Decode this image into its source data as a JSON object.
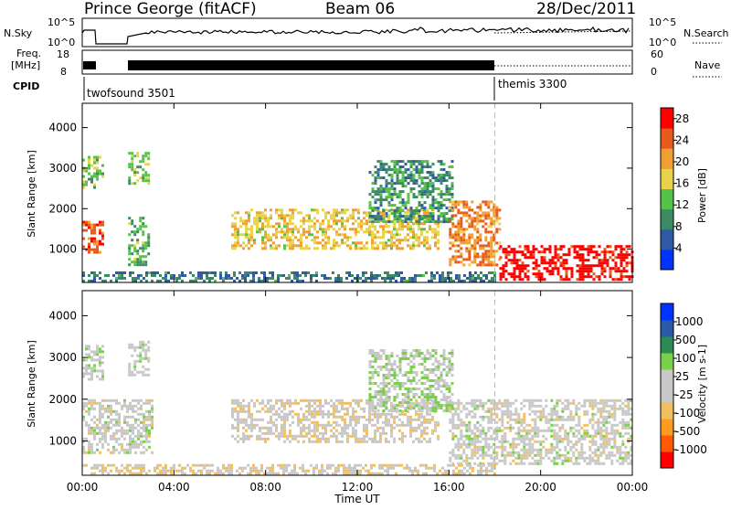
{
  "header": {
    "radar": "Prince George (fitACF)",
    "beam": "Beam 06",
    "date": "28/Dec/2011"
  },
  "panels": {
    "nsky": {
      "label": "N.Sky",
      "ticks": [
        "10^5",
        "10^0"
      ],
      "right_label": "N.Search",
      "right_ticks": [
        "10^5",
        "10^0"
      ]
    },
    "freq": {
      "label_line1": "Freq.",
      "label_line2": "[MHz]",
      "ticks": [
        "18",
        "8"
      ],
      "right_label": "Nave",
      "right_ticks": [
        "60",
        "0"
      ]
    },
    "cpid": {
      "label": "CPID",
      "segments": [
        "twofsound 3501",
        "themis 3300"
      ]
    }
  },
  "chart_data": [
    {
      "type": "heatmap",
      "title": "",
      "xlabel": "Time UT",
      "ylabel": "Slant Range [km]",
      "x_ticks": [
        "00:00",
        "04:00",
        "08:00",
        "12:00",
        "16:00",
        "20:00",
        "00:00"
      ],
      "y_ticks": [
        "4000",
        "3000",
        "2000",
        "1000"
      ],
      "xlim": [
        0,
        24
      ],
      "ylim": [
        180,
        4600
      ],
      "colorbar": {
        "label": "Power [dB]",
        "ticks": [
          "28",
          "24",
          "20",
          "16",
          "12",
          "8",
          "4"
        ],
        "range": [
          0,
          30
        ],
        "colors": [
          "#0033ff",
          "#2f5aa8",
          "#3c8a63",
          "#55c24a",
          "#e8d34a",
          "#f0a030",
          "#e85a1c",
          "#ff0000"
        ]
      },
      "regions": [
        {
          "t": [
            0.0,
            0.9
          ],
          "r": [
            900,
            1700
          ],
          "value": 24
        },
        {
          "t": [
            0.0,
            0.9
          ],
          "r": [
            2500,
            3300
          ],
          "value": 14
        },
        {
          "t": [
            2.0,
            2.9
          ],
          "r": [
            600,
            1800
          ],
          "value": 12
        },
        {
          "t": [
            2.0,
            2.9
          ],
          "r": [
            2600,
            3400
          ],
          "value": 14
        },
        {
          "t": [
            6.5,
            15.5
          ],
          "r": [
            1000,
            2000
          ],
          "value": 18
        },
        {
          "t": [
            12.5,
            16.2
          ],
          "r": [
            1700,
            3200
          ],
          "value": 10
        },
        {
          "t": [
            16.0,
            18.2
          ],
          "r": [
            600,
            2200
          ],
          "value": 22
        },
        {
          "t": [
            18.2,
            24.0
          ],
          "r": [
            250,
            1100
          ],
          "value": 29
        },
        {
          "t": [
            0.0,
            18.0
          ],
          "r": [
            200,
            450
          ],
          "value": 8
        }
      ]
    },
    {
      "type": "heatmap",
      "title": "",
      "xlabel": "Time UT",
      "ylabel": "Slant Range [km]",
      "x_ticks": [
        "00:00",
        "04:00",
        "08:00",
        "12:00",
        "16:00",
        "20:00",
        "00:00"
      ],
      "y_ticks": [
        "4000",
        "3000",
        "2000",
        "1000"
      ],
      "xlim": [
        0,
        24
      ],
      "ylim": [
        180,
        4600
      ],
      "colorbar": {
        "label": "Velocity [m s-1]",
        "ticks": [
          "1000",
          "500",
          "100",
          "25",
          "-25",
          "-100",
          "-500",
          "-1000"
        ],
        "range": [
          -1000,
          1000
        ],
        "colors": [
          "#ff0000",
          "#ff5a00",
          "#ff9a20",
          "#f0c060",
          "#c8c8c8",
          "#c8c8c8",
          "#7ad04a",
          "#2e8a55",
          "#2a5aa8",
          "#0033ff"
        ]
      },
      "regions": [
        {
          "t": [
            0.0,
            3.0
          ],
          "r": [
            700,
            2000
          ],
          "value": 0
        },
        {
          "t": [
            0.0,
            0.9
          ],
          "r": [
            2500,
            3300
          ],
          "value": 60
        },
        {
          "t": [
            2.0,
            2.9
          ],
          "r": [
            2600,
            3400
          ],
          "value": 60
        },
        {
          "t": [
            6.5,
            15.5
          ],
          "r": [
            1000,
            2000
          ],
          "value": -80
        },
        {
          "t": [
            12.5,
            16.2
          ],
          "r": [
            1700,
            3200
          ],
          "value": 150
        },
        {
          "t": [
            16.0,
            24.0
          ],
          "r": [
            450,
            2000
          ],
          "value": 0
        },
        {
          "t": [
            0.0,
            18.0
          ],
          "r": [
            200,
            450
          ],
          "value": -150
        }
      ]
    }
  ]
}
